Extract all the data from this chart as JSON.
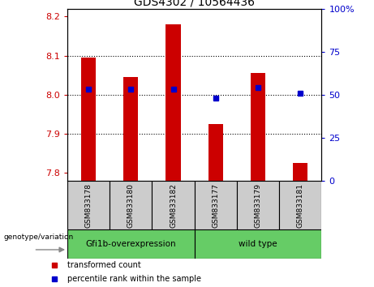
{
  "title": "GDS4302 / 10564436",
  "samples": [
    "GSM833178",
    "GSM833180",
    "GSM833182",
    "GSM833177",
    "GSM833179",
    "GSM833181"
  ],
  "group_labels": [
    "Gfi1b-overexpression",
    "wild type"
  ],
  "red_values": [
    8.095,
    8.045,
    8.18,
    7.925,
    8.055,
    7.825
  ],
  "blue_percentiles": [
    53,
    53,
    53,
    48,
    54,
    51
  ],
  "ylim_left": [
    7.78,
    8.22
  ],
  "ylim_right": [
    0,
    100
  ],
  "yticks_left": [
    7.8,
    7.9,
    8.0,
    8.1,
    8.2
  ],
  "yticks_right": [
    0,
    25,
    50,
    75,
    100
  ],
  "baseline": 7.78,
  "bar_color": "#cc0000",
  "dot_color": "#0000cc",
  "bg_color_samples": "#cccccc",
  "bg_color_group": "#66cc66",
  "legend_red": "transformed count",
  "legend_blue": "percentile rank within the sample",
  "genotype_label": "genotype/variation",
  "bar_width": 0.35,
  "dot_size": 5
}
